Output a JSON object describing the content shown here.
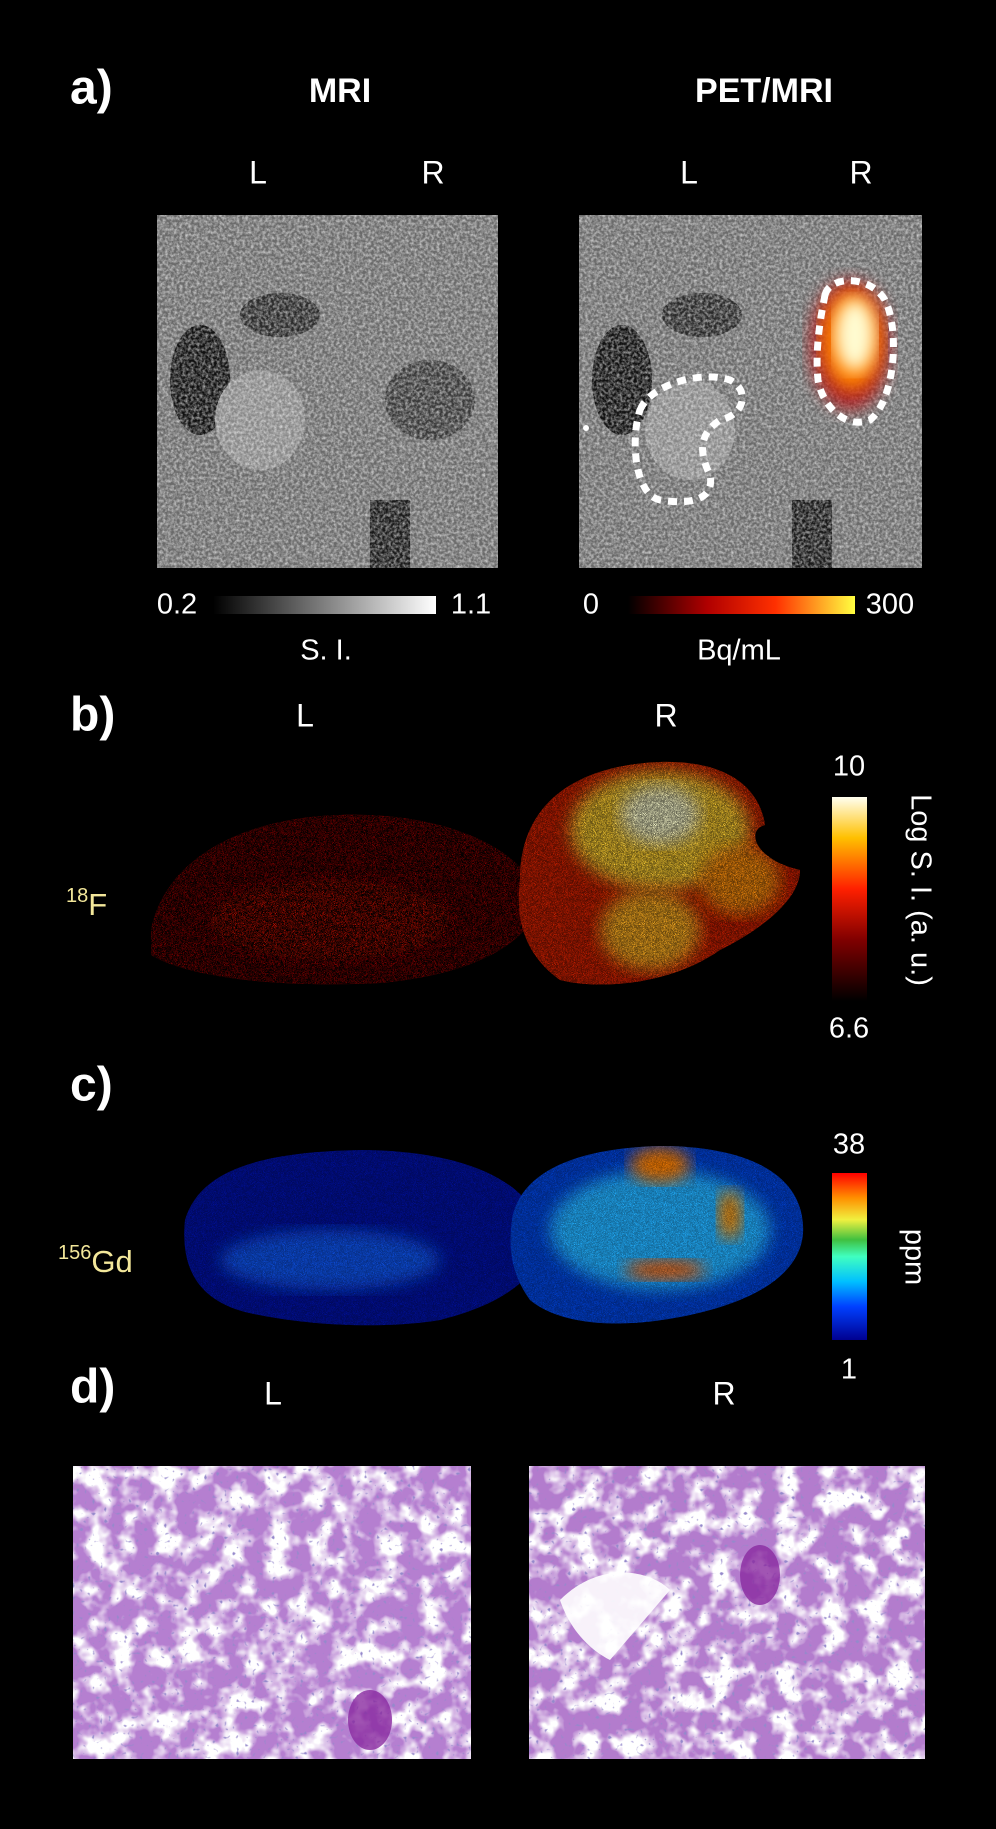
{
  "panel_a": {
    "label": "a)",
    "left_title": "MRI",
    "right_title": "PET/MRI",
    "side_labels": [
      "L",
      "R",
      "L",
      "R"
    ],
    "mri_colorbar": {
      "min": "0.2",
      "max": "1.1",
      "unit": "S. I."
    },
    "pet_colorbar": {
      "min": "0",
      "max": "300",
      "unit": "Bq/mL"
    }
  },
  "panel_b": {
    "label": "b)",
    "side_labels": [
      "L",
      "R"
    ],
    "isotope_mass": "18",
    "isotope_symbol": "F",
    "colorbar": {
      "max": "10",
      "min": "6.6",
      "unit": "Log S. I. (a. u.)"
    }
  },
  "panel_c": {
    "label": "c)",
    "isotope_mass": "156",
    "isotope_symbol": "Gd",
    "colorbar": {
      "max": "38",
      "min": "1",
      "unit": "ppm"
    }
  },
  "panel_d": {
    "label": "d)",
    "side_labels": [
      "L",
      "R"
    ]
  }
}
